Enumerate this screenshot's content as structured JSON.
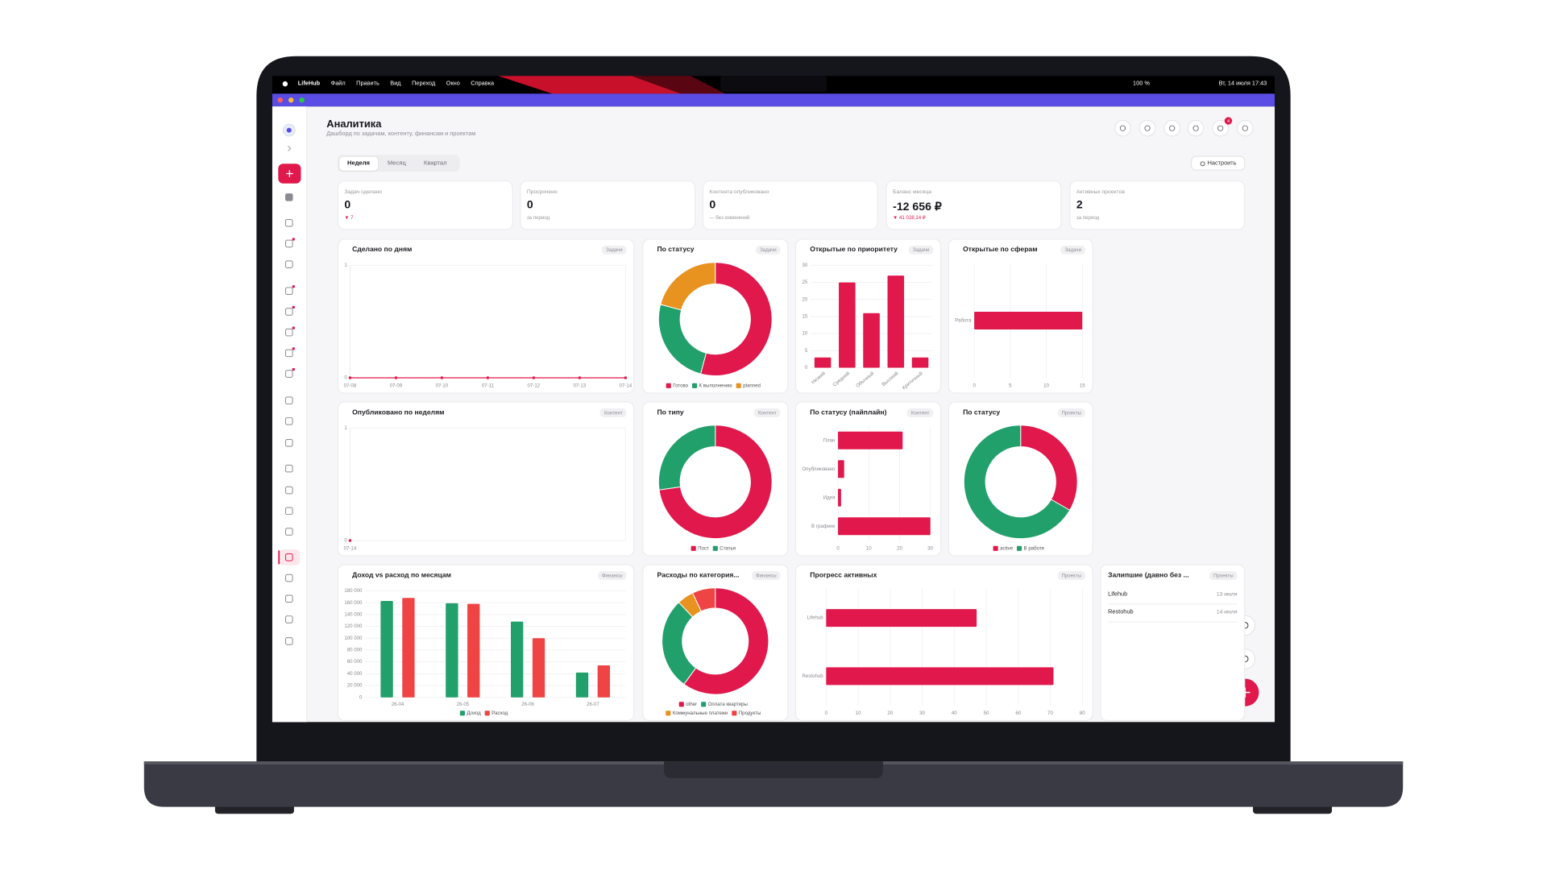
{
  "menubar": {
    "app": "LifeHub",
    "menus": [
      "Файл",
      "Править",
      "Вид",
      "Переход",
      "Окно",
      "Справка"
    ],
    "battery": "100 %",
    "datetime": "Вт, 14 июля 17:43"
  },
  "header": {
    "title": "Аналитика",
    "subtitle": "Дашборд по задачам, контенту, финансам и проектам",
    "notifications": 4
  },
  "tabs": {
    "items": [
      "Неделя",
      "Месяц",
      "Квартал"
    ],
    "active": 0,
    "configure": "Настроить"
  },
  "kpis": [
    {
      "label": "Задач сделано",
      "value": 0,
      "note": "▼ 7"
    },
    {
      "label": "Просрочено",
      "value": 0,
      "note": "за период"
    },
    {
      "label": "Контента опубликовано",
      "value": 0,
      "note": "— без изменений"
    },
    {
      "label": "Баланс месяца",
      "value": "-12 656 ₽",
      "note": "▼ 41 028,14 ₽"
    },
    {
      "label": "Активных проектов",
      "value": 2,
      "note": "за период"
    }
  ],
  "chart_data": [
    {
      "type": "line",
      "title": "Сделано по дням",
      "tag": "Задачи",
      "x": [
        "07-08",
        "07-09",
        "07-10",
        "07-11",
        "07-12",
        "07-13",
        "07-14"
      ],
      "values": [
        0,
        0,
        0,
        0,
        0,
        0,
        0
      ],
      "color": "#e0184b",
      "ylim": [
        0,
        1
      ],
      "yticks": [
        0,
        1
      ],
      "grid": true
    },
    {
      "type": "donut",
      "title": "По статусу",
      "tag": "Задачи",
      "categories": [
        "Готово",
        "К выполнению",
        "planned"
      ],
      "values": [
        13,
        6,
        5
      ],
      "colors": [
        "#e0184b",
        "#22a06b",
        "#e8921f"
      ]
    },
    {
      "type": "bar",
      "title": "Открытые по приоритету",
      "tag": "Задачи",
      "categories": [
        "Низкий",
        "Средний",
        "Обычный",
        "Высокий",
        "Критичный"
      ],
      "values": [
        3,
        25,
        16,
        27,
        3
      ],
      "color": "#e0184b",
      "ylim": [
        0,
        30
      ],
      "yticks": [
        0,
        5,
        10,
        15,
        20,
        25,
        30
      ],
      "grid": true
    },
    {
      "type": "hbar",
      "title": "Открытые по сферам",
      "tag": "Задачи",
      "categories": [
        "Работа"
      ],
      "values": [
        15
      ],
      "color": "#e0184b",
      "xlim": [
        0,
        15
      ],
      "xticks": [
        0,
        5,
        10,
        15
      ],
      "grid": true
    },
    {
      "type": "line",
      "title": "Опубликовано по неделям",
      "tag": "Контент",
      "x": [
        "07-14"
      ],
      "values": [
        0
      ],
      "color": "#e0184b",
      "ylim": [
        0,
        1
      ],
      "yticks": [
        0,
        1
      ],
      "grid": true
    },
    {
      "type": "donut",
      "title": "По типу",
      "tag": "Контент",
      "categories": [
        "Пост",
        "Статья"
      ],
      "values": [
        8,
        3
      ],
      "colors": [
        "#e0184b",
        "#22a06b"
      ]
    },
    {
      "type": "hbar",
      "title": "По статусу (пайплайн)",
      "tag": "Контент",
      "categories": [
        "План",
        "Опубликовано",
        "Идея",
        "В графике"
      ],
      "values": [
        21,
        2,
        1,
        30
      ],
      "color": "#e0184b",
      "xlim": [
        0,
        30
      ],
      "xticks": [
        0,
        10,
        20,
        30
      ],
      "grid": true
    },
    {
      "type": "donut",
      "title": "По статусу",
      "tag": "Проекты",
      "categories": [
        "active",
        "В работе"
      ],
      "values": [
        1,
        2
      ],
      "colors": [
        "#e0184b",
        "#22a06b"
      ]
    },
    {
      "type": "bar",
      "title": "Доход vs расход по месяцам",
      "tag": "Финансы",
      "categories": [
        "26-04",
        "26-05",
        "26-06",
        "26-07"
      ],
      "series": [
        {
          "name": "Доход",
          "color": "#22a06b",
          "values": [
            163000,
            159000,
            128000,
            42000
          ]
        },
        {
          "name": "Расход",
          "color": "#ef4444",
          "values": [
            168000,
            158000,
            100000,
            54000
          ]
        }
      ],
      "ylim": [
        0,
        180000
      ],
      "yticks": [
        0,
        {
          "value": 20000,
          "label": "20 000"
        },
        {
          "value": 40000,
          "label": "40 000"
        },
        {
          "value": 60000,
          "label": "60 000"
        },
        {
          "value": 80000,
          "label": "80 000"
        },
        {
          "value": 100000,
          "label": "100 000"
        },
        {
          "value": 120000,
          "label": "120 000"
        },
        {
          "value": 140000,
          "label": "140 000"
        },
        {
          "value": 160000,
          "label": "160 000"
        },
        {
          "value": 180000,
          "label": "180 000"
        }
      ],
      "grid": true
    },
    {
      "type": "donut",
      "title": "Расходы по категория...",
      "tag": "Финансы",
      "categories": [
        "other",
        "Оплата квартиры",
        "Коммунальные платежи",
        "Продукты"
      ],
      "values": [
        60,
        28,
        5,
        7
      ],
      "colors": [
        "#e0184b",
        "#22a06b",
        "#e8921f",
        "#ef4444"
      ]
    },
    {
      "type": "hbar",
      "title": "Прогресс активных",
      "tag": "Проекты",
      "categories": [
        "Lifehub",
        "Restohub"
      ],
      "values": [
        47,
        71
      ],
      "color": "#e0184b",
      "xlim": [
        0,
        80
      ],
      "xticks": [
        0,
        10,
        20,
        30,
        40,
        50,
        60,
        70,
        80
      ],
      "grid": true
    }
  ],
  "stale": {
    "title": "Залипшие (давно без ...",
    "tag": "Проекты",
    "rows": [
      {
        "name": "Lifehub",
        "date": "13 июля"
      },
      {
        "name": "Restohub",
        "date": "14 июля"
      }
    ]
  }
}
